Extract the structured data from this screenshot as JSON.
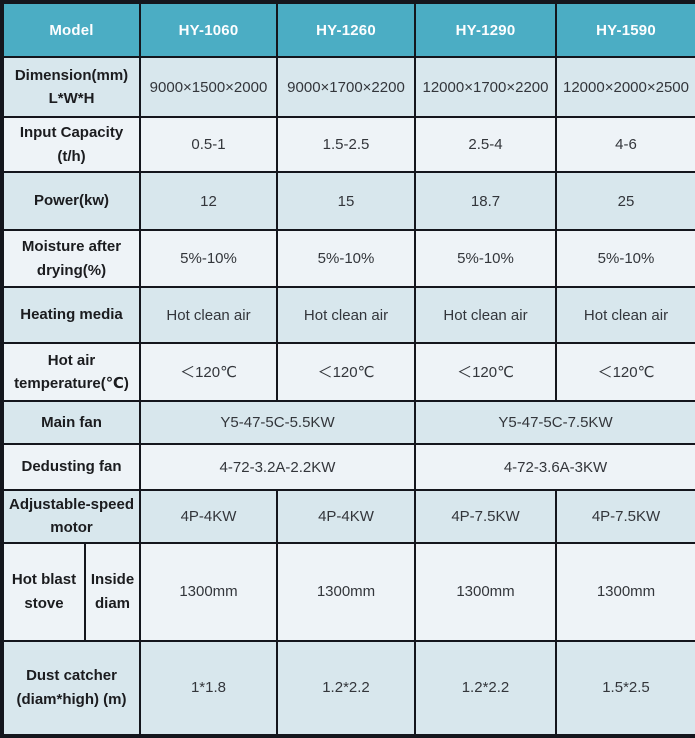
{
  "header": {
    "model_label": "Model",
    "models": [
      "HY-1060",
      "HY-1260",
      "HY-1290",
      "HY-1590"
    ]
  },
  "rows": {
    "dimension": {
      "label": [
        "Dimension(mm)",
        "L*W*H"
      ],
      "values": [
        "9000×1500×2000",
        "9000×1700×2200",
        "12000×1700×2200",
        "12000×2000×2500"
      ]
    },
    "input_capacity": {
      "label": [
        "Input Capacity (t/h)"
      ],
      "values": [
        "0.5-1",
        "1.5-2.5",
        "2.5-4",
        "4-6"
      ]
    },
    "power": {
      "label": [
        "Power(kw)"
      ],
      "values": [
        "12",
        "15",
        "18.7",
        "25"
      ]
    },
    "moisture": {
      "label": [
        "Moisture after",
        "drying(%)"
      ],
      "values": [
        "5%-10%",
        "5%-10%",
        "5%-10%",
        "5%-10%"
      ]
    },
    "heating_media": {
      "label": [
        "Heating media"
      ],
      "values": [
        "Hot clean air",
        "Hot clean air",
        "Hot clean air",
        "Hot clean air"
      ]
    },
    "hot_air_temperature": {
      "label": [
        "Hot air",
        "temperature(℃)"
      ],
      "values": [
        "＜120℃",
        "＜120℃",
        "＜120℃",
        "＜120℃"
      ]
    },
    "main_fan": {
      "label": [
        "Main fan"
      ],
      "values": [
        "Y5-47-5C-5.5KW",
        "Y5-47-5C-7.5KW"
      ]
    },
    "dedusting_fan": {
      "label": [
        "Dedusting fan"
      ],
      "values": [
        "4-72-3.2A-2.2KW",
        "4-72-3.6A-3KW"
      ]
    },
    "adjustable_speed_motor": {
      "label": [
        "Adjustable-speed",
        "motor"
      ],
      "values": [
        "4P-4KW",
        "4P-4KW",
        "4P-7.5KW",
        "4P-7.5KW"
      ]
    },
    "hot_blast_stove": {
      "label": [
        "Hot blast",
        "stove"
      ],
      "sublabel": [
        "Inside",
        "diam"
      ],
      "values": [
        "1300mm",
        "1300mm",
        "1300mm",
        "1300mm"
      ]
    },
    "dust_catcher": {
      "label": [
        "Dust catcher",
        "(diam*high) (m)"
      ],
      "values": [
        "1*1.8",
        "1.2*2.2",
        "1.2*2.2",
        "1.5*2.5"
      ]
    }
  },
  "colors": {
    "header_bg": "#4badc4",
    "header_text": "#fdfeff",
    "row_blue": "#d8e7ed",
    "row_light": "#eef3f7",
    "border": "#14161d",
    "label_text": "#1b1c1f",
    "value_text": "#33363b"
  }
}
